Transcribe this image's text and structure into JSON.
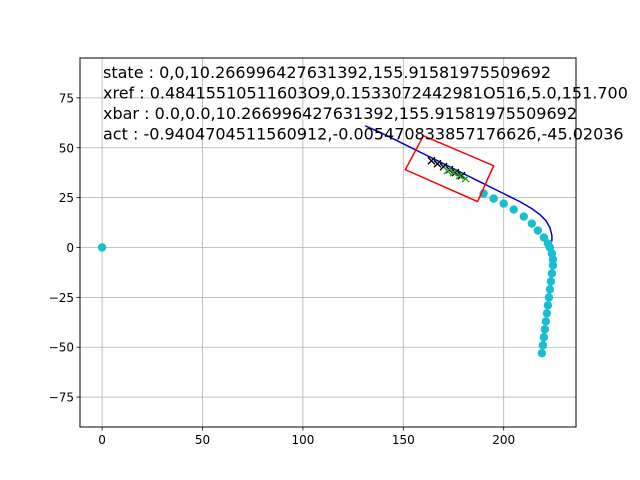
{
  "chart_data": {
    "type": "line",
    "title": "",
    "xlabel": "",
    "ylabel": "",
    "xlim": [
      -11,
      236
    ],
    "ylim": [
      -90,
      95
    ],
    "xticks": [
      0,
      50,
      100,
      150,
      200
    ],
    "yticks": [
      -75,
      -50,
      -25,
      0,
      25,
      50,
      75
    ],
    "grid": true,
    "legend": "none",
    "annotations": [
      "state : 0,0,10.266996427631392,155.91581975509692",
      "xref : 0.48415510511603O9,0.1533072442981O516,5.0,151.700",
      "xbar : 0.0,0.0,10.266996427631392,155.91581975509692",
      "act : -0.9404704511560912,-0.00547083385717662б,-45.02036"
    ],
    "series": [
      {
        "kind": "line",
        "color": "#0000cc",
        "x": [
          131,
          140,
          150,
          160,
          170,
          180,
          190,
          200,
          208,
          214,
          218,
          221,
          223,
          224,
          224
        ],
        "y": [
          61,
          57,
          52,
          47,
          42,
          37,
          32,
          27,
          23,
          19.5,
          16.5,
          13.5,
          10,
          6,
          3
        ]
      },
      {
        "kind": "scatter",
        "marker": "circle",
        "color": "#17becf",
        "x": [
          0,
          190,
          195,
          200,
          205,
          210,
          214,
          217,
          220,
          222,
          223,
          224,
          224.5,
          224.5,
          224,
          223.5,
          223,
          222.5,
          222,
          221.5,
          221,
          220.5,
          220,
          219.5,
          219
        ],
        "y": [
          0,
          27,
          24.5,
          22,
          19,
          15.5,
          12,
          8.5,
          5,
          2,
          0,
          -3,
          -6,
          -9,
          -13,
          -17,
          -21,
          -25,
          -29,
          -33,
          -37,
          -41,
          -45,
          -49,
          -53
        ]
      },
      {
        "kind": "scatter",
        "marker": "x",
        "color": "#000000",
        "x": [
          164,
          167,
          170,
          173,
          176,
          179
        ],
        "y": [
          43.5,
          42,
          40.5,
          39,
          37.5,
          36
        ]
      },
      {
        "kind": "scatter",
        "marker": "x",
        "color": "#2ca02c",
        "x": [
          172,
          175,
          178,
          181
        ],
        "y": [
          38.5,
          37.5,
          36,
          34.5
        ]
      },
      {
        "kind": "polygon",
        "color": "#ff0000",
        "x": [
          160,
          195,
          187,
          151
        ],
        "y": [
          56,
          41,
          23,
          39
        ]
      }
    ]
  }
}
